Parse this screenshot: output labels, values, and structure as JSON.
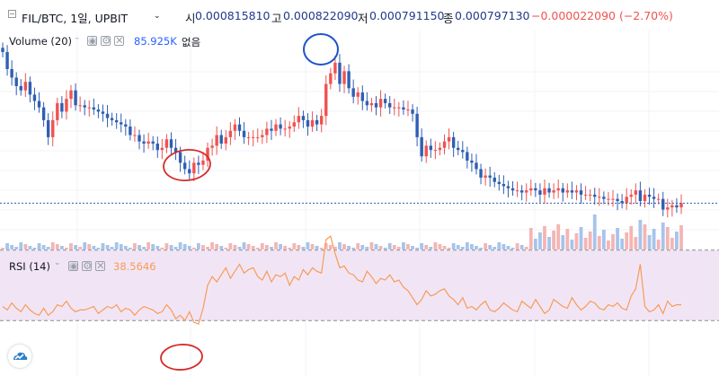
{
  "header": {
    "symbol": "FIL/BTC, 1일, UPBIT",
    "caret": "⌄",
    "open_label": "시",
    "open_value": "0.000815810",
    "high_label": "고",
    "high_value": "0.000822090",
    "low_label": "저",
    "low_value": "0.000791150",
    "close_label": "종",
    "close_value": "0.000797130",
    "change": "−0.000022090 (−2.70%)"
  },
  "volume_indicator": {
    "name": "Volume (20)",
    "value": "85.925K",
    "extra": "없음"
  },
  "rsi_indicator": {
    "name": "RSI (14)",
    "value": "38.5646"
  },
  "icons": [
    "collapse-icon",
    "chevron-down-icon",
    "eye-icon",
    "gear-icon",
    "close-icon",
    "brand-logo-icon"
  ],
  "colors": {
    "up": "#ef5350",
    "down": "#2f5fb3",
    "rsi_line": "#f89b58",
    "rsi_band": "#f1e5f5",
    "annotation_red": "#d62b2b",
    "annotation_blue": "#1e54c8",
    "last_price_line": "#2f5fb3"
  },
  "chart_data": [
    {
      "type": "candlestick",
      "series_count": 150,
      "closes_relative": [
        0.000858,
        0.00085,
        0.000846,
        0.000842,
        0.00084,
        0.000844,
        0.000838,
        0.000835,
        0.000832,
        0.000826,
        0.000818,
        0.000826,
        0.000834,
        0.00083,
        0.000836,
        0.00084,
        0.000833,
        0.000833,
        0.000832,
        0.000832,
        0.000831,
        0.00083,
        0.000829,
        0.000827,
        0.000826,
        0.000825,
        0.000824,
        0.000823,
        0.000819,
        0.000819,
        0.000816,
        0.000815,
        0.000816,
        0.000815,
        0.000812,
        0.000813,
        0.000817,
        0.000813,
        0.000811,
        0.000806,
        0.000803,
        0.000801,
        0.000806,
        0.000805,
        0.000807,
        0.000813,
        0.000814,
        0.000819,
        0.000815,
        0.000818,
        0.000821,
        0.000824,
        0.000821,
        0.000818,
        0.000818,
        0.000818,
        0.000818,
        0.000819,
        0.000822,
        0.000821,
        0.000824,
        0.000822,
        0.000822,
        0.000823,
        0.000825,
        0.000828,
        0.000826,
        0.000823,
        0.000826,
        0.000824,
        0.000828,
        0.000843,
        0.000848,
        0.000853,
        0.000843,
        0.000849,
        0.000841,
        0.000837,
        0.000839,
        0.000835,
        0.000833,
        0.000834,
        0.000832,
        0.000836,
        0.000834,
        0.000832,
        0.000832,
        0.000832,
        0.000831,
        0.000831,
        0.000829,
        0.000818,
        0.000809,
        0.000814,
        0.000812,
        0.000812,
        0.000813,
        0.000816,
        0.000818,
        0.000813,
        0.000812,
        0.000811,
        0.000807,
        0.000806,
        0.000803,
        0.000799,
        0.0008,
        0.000799,
        0.000797,
        0.000796,
        0.000795,
        0.000794,
        0.000793,
        0.000793,
        0.000792,
        0.000793,
        0.000794,
        0.000793,
        0.000791,
        0.000794,
        0.000792,
        0.000793,
        0.000794,
        0.000792,
        0.000793,
        0.000792,
        0.000793,
        0.000791,
        0.000791,
        0.000791,
        0.00079,
        0.00079,
        0.000789,
        0.000789,
        0.000789,
        0.000788,
        0.000787,
        0.00079,
        0.000791,
        0.000793,
        0.000788,
        0.000791,
        0.00079,
        0.000789,
        0.000789,
        0.000784,
        0.000785,
        0.000786,
        0.000785,
        0.000787
      ]
    },
    {
      "type": "line",
      "name": "RSI (14)",
      "ylim": [
        0,
        100
      ],
      "band": [
        30,
        70
      ],
      "values": [
        38,
        36,
        40,
        37,
        35,
        39,
        36,
        34,
        33,
        37,
        33,
        35,
        39,
        38,
        41,
        37,
        35,
        36,
        36,
        37,
        38,
        34,
        36,
        38,
        37,
        39,
        35,
        37,
        36,
        33,
        36,
        38,
        37,
        36,
        34,
        35,
        39,
        36,
        31,
        33,
        30,
        35,
        29,
        28,
        37,
        50,
        55,
        52,
        56,
        60,
        54,
        58,
        62,
        57,
        59,
        60,
        55,
        53,
        58,
        52,
        56,
        55,
        57,
        50,
        55,
        53,
        59,
        56,
        60,
        58,
        57,
        76,
        78,
        68,
        60,
        61,
        57,
        56,
        53,
        52,
        58,
        55,
        51,
        54,
        53,
        56,
        52,
        53,
        49,
        47,
        43,
        39,
        42,
        47,
        44,
        45,
        47,
        48,
        44,
        42,
        39,
        43,
        37,
        38,
        36,
        39,
        41,
        36,
        35,
        37,
        40,
        38,
        36,
        35,
        41,
        39,
        37,
        42,
        38,
        34,
        36,
        42,
        40,
        38,
        37,
        43,
        39,
        36,
        38,
        41,
        40,
        37,
        36,
        39,
        38,
        40,
        37,
        36,
        44,
        48,
        62,
        38,
        35,
        36,
        39,
        34,
        41,
        38,
        39,
        39
      ]
    }
  ]
}
